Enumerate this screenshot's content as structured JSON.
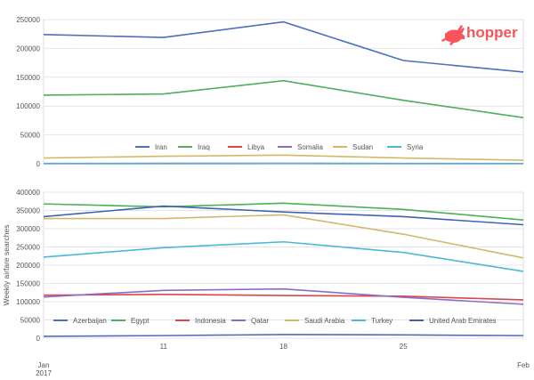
{
  "brand": {
    "logo_text": "hopper",
    "color": "#f9545b"
  },
  "chart_data": [
    {
      "type": "line",
      "x": [
        "Jan 4",
        "11",
        "18",
        "25",
        "Feb 1"
      ],
      "ylim": [
        0,
        250000
      ],
      "yticks": [
        "0",
        "50000",
        "100000",
        "150000",
        "200000",
        "250000"
      ],
      "legend_position": "bottom-center",
      "series": [
        {
          "name": "Iran",
          "color": "#4a6fbe",
          "values": [
            224000,
            219000,
            246000,
            179000,
            159000
          ]
        },
        {
          "name": "Iraq",
          "color": "#4caf5a",
          "values": [
            119000,
            121000,
            144000,
            110000,
            80000
          ]
        },
        {
          "name": "Libya",
          "color": "#d9474a",
          "values": [
            500,
            600,
            700,
            500,
            400
          ]
        },
        {
          "name": "Somalia",
          "color": "#8a6cc6",
          "values": [
            300,
            300,
            400,
            300,
            300
          ]
        },
        {
          "name": "Sudan",
          "color": "#d4b86a",
          "values": [
            10000,
            13000,
            15000,
            10000,
            6000
          ]
        },
        {
          "name": "Syria",
          "color": "#4bb8d6",
          "values": [
            200,
            200,
            300,
            200,
            200
          ]
        }
      ]
    },
    {
      "type": "line",
      "ylabel": "Weekly airfare searches",
      "x": [
        "Jan 4",
        "11",
        "18",
        "25",
        "Feb 1"
      ],
      "xtick_labels": [
        "11",
        "18",
        "25"
      ],
      "xlabel_start": [
        "Jan",
        "2017"
      ],
      "xlabel_end": "Feb",
      "ylim": [
        0,
        400000
      ],
      "yticks": [
        "0",
        "50000",
        "100000",
        "150000",
        "200000",
        "250000",
        "300000",
        "350000",
        "400000"
      ],
      "legend_position": "bottom-center",
      "series": [
        {
          "name": "Azerbaijan",
          "color": "#4a6fbe",
          "values": [
            5000,
            7000,
            10000,
            9000,
            7000
          ]
        },
        {
          "name": "Egypt",
          "color": "#4caf5a",
          "values": [
            368000,
            360000,
            370000,
            353000,
            324000
          ]
        },
        {
          "name": "Indonesia",
          "color": "#d9474a",
          "values": [
            118000,
            120000,
            117000,
            115000,
            105000
          ]
        },
        {
          "name": "Qatar",
          "color": "#8a6cc6",
          "values": [
            113000,
            131000,
            135000,
            112000,
            93000
          ]
        },
        {
          "name": "Saudi Arabia",
          "color": "#d4b86a",
          "values": [
            328000,
            328000,
            338000,
            285000,
            220000
          ]
        },
        {
          "name": "Turkey",
          "color": "#4bb8d6",
          "values": [
            222000,
            248000,
            264000,
            235000,
            183000
          ]
        },
        {
          "name": "United Arab Emirates",
          "color": "#3f62b3",
          "values": [
            333000,
            362000,
            346000,
            333000,
            311000
          ]
        }
      ]
    }
  ]
}
